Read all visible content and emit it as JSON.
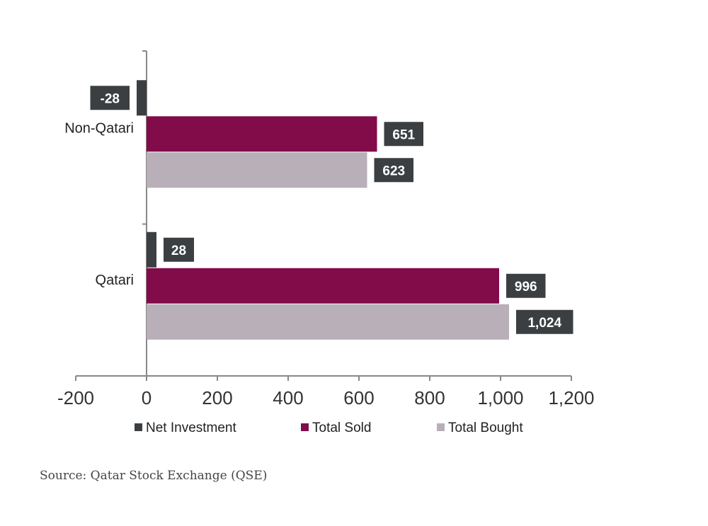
{
  "chart_data": {
    "type": "bar",
    "orientation": "horizontal",
    "title": "",
    "xlabel": "",
    "ylabel": "",
    "categories": [
      "Non-Qatari",
      "Qatari"
    ],
    "series": [
      {
        "name": "Net Investment",
        "values": [
          -28,
          28
        ],
        "labels": [
          "-28",
          "28"
        ],
        "color": "#3b3f41"
      },
      {
        "name": "Total Sold",
        "values": [
          651,
          996
        ],
        "labels": [
          "651",
          "996"
        ],
        "color": "#820b4a"
      },
      {
        "name": "Total Bought",
        "values": [
          623,
          1024
        ],
        "labels": [
          "623",
          "1,024"
        ],
        "color": "#b8afb8"
      }
    ],
    "xlim": [
      -200,
      1200
    ],
    "xticks": [
      -200,
      0,
      200,
      400,
      600,
      800,
      1000,
      1200
    ],
    "xtick_labels": [
      "-200",
      "0",
      "200",
      "400",
      "600",
      "800",
      "1,000",
      "1,200"
    ],
    "grid": false,
    "legend_position": "bottom",
    "label_box_color": "#3b3f41"
  },
  "source": "Source: Qatar Stock Exchange (QSE)"
}
